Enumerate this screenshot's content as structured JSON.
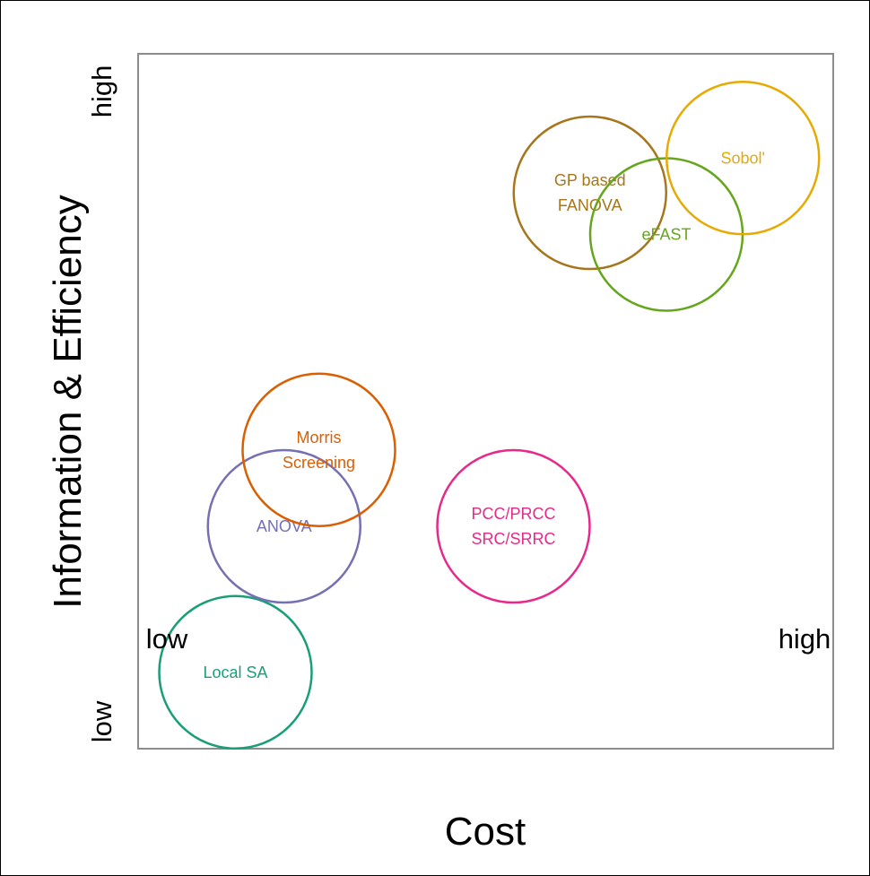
{
  "chart_data": {
    "type": "scatter",
    "title": "",
    "xlabel": "Cost",
    "ylabel": "Information & Efficiency",
    "xlim": [
      0,
      100
    ],
    "ylim": [
      0,
      100
    ],
    "x_tick_labels": [
      "low",
      "high"
    ],
    "y_tick_labels": [
      "low",
      "high"
    ],
    "grid": false,
    "legend": "none",
    "marker": "open circle",
    "points": [
      {
        "label": [
          "Local SA"
        ],
        "x": 14,
        "y": 11,
        "color": "#1b9e77"
      },
      {
        "label": [
          "ANOVA"
        ],
        "x": 21,
        "y": 32,
        "color": "#7570b3"
      },
      {
        "label": [
          "Morris",
          "Screening"
        ],
        "x": 26,
        "y": 43,
        "color": "#d95f02"
      },
      {
        "label": [
          "PCC/PRCC",
          "SRC/SRRC"
        ],
        "x": 54,
        "y": 32,
        "color": "#e7298a"
      },
      {
        "label": [
          "GP based",
          "FANOVA"
        ],
        "x": 65,
        "y": 80,
        "color": "#a6761d"
      },
      {
        "label": [
          "eFAST"
        ],
        "x": 76,
        "y": 74,
        "color": "#66a61e"
      },
      {
        "label": [
          "Sobol'"
        ],
        "x": 87,
        "y": 85,
        "color": "#e6ab02"
      }
    ]
  }
}
